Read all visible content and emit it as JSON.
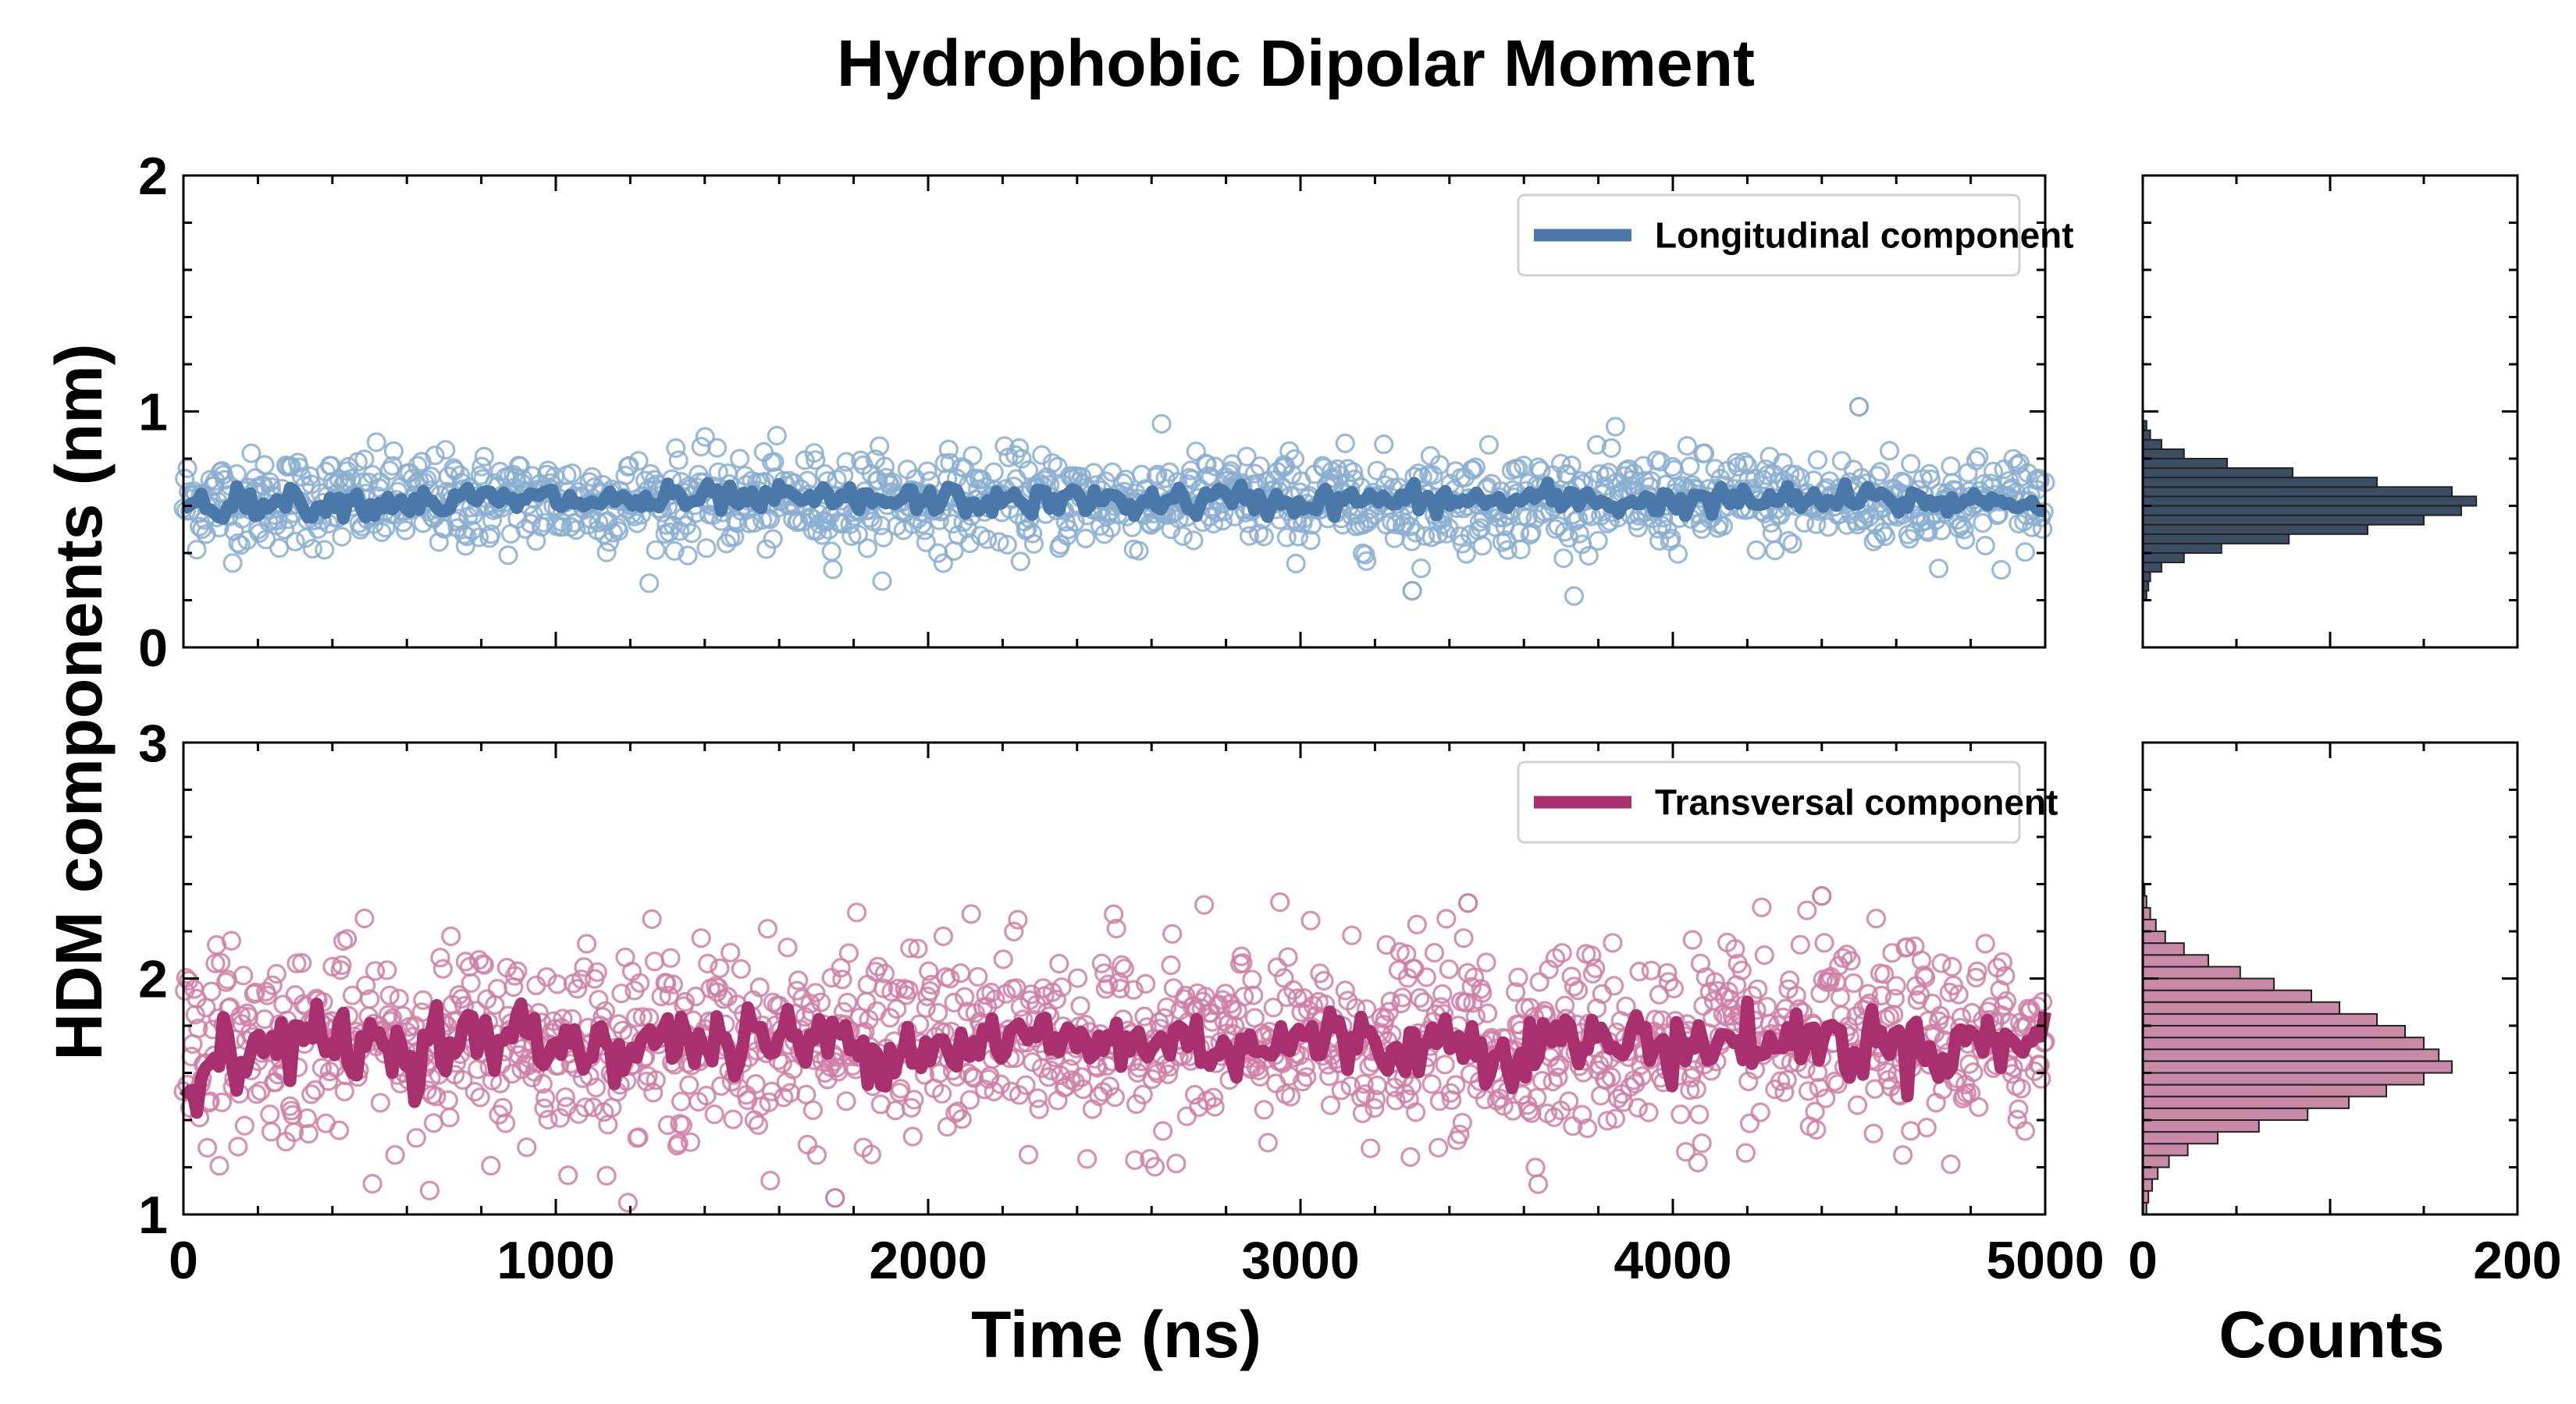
{
  "chart_data": {
    "title": "Hydrophobic Dipolar Moment",
    "ylabel": "HDM components (nm)",
    "xlabel": "Time (ns)",
    "hist_xlabel": "Counts",
    "colors": {
      "longitudinal_line": "#4a78a8",
      "longitudinal_marker": "#8aaed0",
      "longitudinal_hist": "#3b4e63",
      "transversal_line": "#a8306e",
      "transversal_marker": "#cf7ea6",
      "transversal_hist": "#c98aa8"
    },
    "panels": [
      {
        "id": "longitudinal",
        "type": "scatter+line",
        "legend": "Longitudinal component",
        "legend_location": "upper right",
        "xlim": [
          0,
          5000
        ],
        "ylim": [
          0,
          2
        ],
        "yticks": [
          0,
          1,
          2
        ],
        "ytick_labels": [
          "0",
          "1",
          "2"
        ],
        "scatter_mean": 0.62,
        "scatter_std": 0.1,
        "running_mean_level": 0.62,
        "n_points": 1400,
        "outliers": [
          {
            "x": 4500,
            "y": 1.02
          },
          {
            "x": 3300,
            "y": 0.24
          }
        ],
        "histogram": {
          "xlim": [
            0,
            200
          ],
          "bins": [
            0.2,
            0.24,
            0.28,
            0.32,
            0.36,
            0.4,
            0.44,
            0.48,
            0.52,
            0.56,
            0.6,
            0.64,
            0.68,
            0.72,
            0.76,
            0.8,
            0.84,
            0.88,
            0.92
          ],
          "counts": [
            2,
            3,
            4,
            10,
            22,
            42,
            78,
            120,
            150,
            170,
            178,
            165,
            125,
            80,
            45,
            22,
            10,
            4,
            2
          ]
        }
      },
      {
        "id": "transversal",
        "type": "scatter+line",
        "legend": "Transversal component",
        "legend_location": "upper right",
        "xlim": [
          0,
          5000
        ],
        "ylim": [
          1,
          3
        ],
        "yticks": [
          1,
          2,
          3
        ],
        "ytick_labels": [
          "1",
          "2",
          "3"
        ],
        "scatter_mean": 1.73,
        "scatter_std": 0.2,
        "running_mean_level": 1.73,
        "n_points": 1400,
        "outliers": [
          {
            "x": 1750,
            "y": 1.07
          },
          {
            "x": 4400,
            "y": 2.35
          },
          {
            "x": 3450,
            "y": 2.32
          }
        ],
        "histogram": {
          "xlim": [
            0,
            200
          ],
          "bins": [
            1.0,
            1.05,
            1.1,
            1.15,
            1.2,
            1.25,
            1.3,
            1.35,
            1.4,
            1.45,
            1.5,
            1.55,
            1.6,
            1.65,
            1.7,
            1.75,
            1.8,
            1.85,
            1.9,
            1.95,
            2.0,
            2.05,
            2.1,
            2.15,
            2.2,
            2.25,
            2.3,
            2.35
          ],
          "counts": [
            2,
            3,
            5,
            8,
            14,
            24,
            40,
            62,
            88,
            110,
            130,
            150,
            165,
            158,
            150,
            140,
            125,
            105,
            90,
            70,
            52,
            35,
            22,
            12,
            7,
            4,
            2,
            1
          ]
        }
      }
    ],
    "xticks": [
      0,
      1000,
      2000,
      3000,
      4000,
      5000
    ],
    "xtick_labels": [
      "0",
      "1000",
      "2000",
      "3000",
      "4000",
      "5000"
    ],
    "hist_xticks": [
      0,
      200
    ],
    "hist_xtick_labels": [
      "0",
      "200"
    ]
  }
}
